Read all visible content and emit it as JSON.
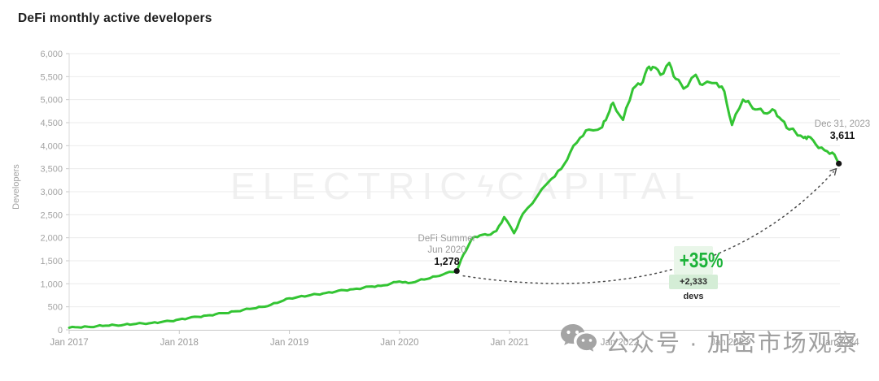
{
  "title": "DeFi monthly active developers",
  "brand_watermark": {
    "left": "ELECTRIC",
    "bolt": "ϟ",
    "right": "CAPITAL"
  },
  "wechat_watermark": {
    "icon": "wechat-icon",
    "text": "公众号 · 加密市场观察"
  },
  "annotations": {
    "defi_summer": {
      "title": "DeFi Summer",
      "date": "Jun 2020",
      "value": "1,278"
    },
    "endpoint": {
      "date": "Dec 31, 2023",
      "value": "3,611"
    },
    "growth": {
      "percent": "+35%",
      "devs": "+2,333 devs"
    }
  },
  "colors": {
    "line": "#33c433",
    "dot": "#151515",
    "connector": "#4a4a4a",
    "growth_text": "#1db33a",
    "growth_bg_top": "#e9f6e9",
    "growth_bg_bottom": "#d4edd6",
    "grid": "#ebebeb",
    "axis": "#c9c9c9",
    "tick_text": "#a2a2a2",
    "brand_watermark": "#f0f0f0",
    "wechat_watermark": "#a0a0a0",
    "title_text": "#1d1d1d"
  },
  "chart_data": {
    "type": "line",
    "title": "DeFi monthly active developers",
    "xlabel": "",
    "ylabel": "Developers",
    "xlim": [
      2017,
      2024
    ],
    "ylim": [
      0,
      6000
    ],
    "grid": "horizontal",
    "legend": "none",
    "x_ticks": [
      {
        "value": 2017,
        "label": "Jan 2017"
      },
      {
        "value": 2018,
        "label": "Jan 2018"
      },
      {
        "value": 2019,
        "label": "Jan 2019"
      },
      {
        "value": 2020,
        "label": "Jan 2020"
      },
      {
        "value": 2021,
        "label": "Jan 2021"
      },
      {
        "value": 2022,
        "label": "Jan 2022"
      },
      {
        "value": 2023,
        "label": "Jan 2023"
      },
      {
        "value": 2024,
        "label": "Jan 2024"
      }
    ],
    "y_ticks": [
      {
        "value": 0,
        "label": "0"
      },
      {
        "value": 500,
        "label": "500"
      },
      {
        "value": 1000,
        "label": "1,000"
      },
      {
        "value": 1500,
        "label": "1,500"
      },
      {
        "value": 2000,
        "label": "2,000"
      },
      {
        "value": 2500,
        "label": "2,500"
      },
      {
        "value": 3000,
        "label": "3,000"
      },
      {
        "value": 3500,
        "label": "3,500"
      },
      {
        "value": 4000,
        "label": "4,000"
      },
      {
        "value": 4500,
        "label": "4,500"
      },
      {
        "value": 5000,
        "label": "5,000"
      },
      {
        "value": 5500,
        "label": "5,500"
      },
      {
        "value": 6000,
        "label": "6,000"
      }
    ],
    "series": [
      {
        "name": "DeFi monthly active developers",
        "color": "#33c433",
        "points": [
          [
            2017.0,
            45
          ],
          [
            2017.08,
            55
          ],
          [
            2017.17,
            65
          ],
          [
            2017.25,
            80
          ],
          [
            2017.33,
            90
          ],
          [
            2017.42,
            100
          ],
          [
            2017.5,
            112
          ],
          [
            2017.58,
            122
          ],
          [
            2017.67,
            138
          ],
          [
            2017.75,
            150
          ],
          [
            2017.83,
            165
          ],
          [
            2017.92,
            190
          ],
          [
            2018.0,
            228
          ],
          [
            2018.08,
            252
          ],
          [
            2018.17,
            282
          ],
          [
            2018.25,
            310
          ],
          [
            2018.33,
            338
          ],
          [
            2018.42,
            362
          ],
          [
            2018.5,
            400
          ],
          [
            2018.58,
            432
          ],
          [
            2018.67,
            462
          ],
          [
            2018.75,
            500
          ],
          [
            2018.83,
            542
          ],
          [
            2018.92,
            612
          ],
          [
            2019.0,
            685
          ],
          [
            2019.08,
            715
          ],
          [
            2019.17,
            742
          ],
          [
            2019.25,
            772
          ],
          [
            2019.33,
            800
          ],
          [
            2019.42,
            832
          ],
          [
            2019.5,
            862
          ],
          [
            2019.58,
            882
          ],
          [
            2019.67,
            912
          ],
          [
            2019.75,
            942
          ],
          [
            2019.83,
            955
          ],
          [
            2019.92,
            1005
          ],
          [
            2020.0,
            1050
          ],
          [
            2020.08,
            1015
          ],
          [
            2020.17,
            1070
          ],
          [
            2020.25,
            1105
          ],
          [
            2020.33,
            1160
          ],
          [
            2020.42,
            1230
          ],
          [
            2020.52,
            1278
          ],
          [
            2020.58,
            1630
          ],
          [
            2020.66,
            1990
          ],
          [
            2020.73,
            2050
          ],
          [
            2020.8,
            2060
          ],
          [
            2020.88,
            2150
          ],
          [
            2020.95,
            2450
          ],
          [
            2021.04,
            2100
          ],
          [
            2021.12,
            2520
          ],
          [
            2021.25,
            2900
          ],
          [
            2021.38,
            3280
          ],
          [
            2021.47,
            3500
          ],
          [
            2021.55,
            3850
          ],
          [
            2021.64,
            4170
          ],
          [
            2021.72,
            4350
          ],
          [
            2021.84,
            4400
          ],
          [
            2021.89,
            4650
          ],
          [
            2021.94,
            4930
          ],
          [
            2022.03,
            4560
          ],
          [
            2022.12,
            5240
          ],
          [
            2022.19,
            5325
          ],
          [
            2022.25,
            5680
          ],
          [
            2022.3,
            5710
          ],
          [
            2022.37,
            5540
          ],
          [
            2022.45,
            5800
          ],
          [
            2022.51,
            5450
          ],
          [
            2022.58,
            5240
          ],
          [
            2022.69,
            5540
          ],
          [
            2022.75,
            5320
          ],
          [
            2022.88,
            5360
          ],
          [
            2022.95,
            5180
          ],
          [
            2023.02,
            4450
          ],
          [
            2023.12,
            5000
          ],
          [
            2023.19,
            4880
          ],
          [
            2023.25,
            4790
          ],
          [
            2023.34,
            4700
          ],
          [
            2023.41,
            4760
          ],
          [
            2023.47,
            4560
          ],
          [
            2023.54,
            4350
          ],
          [
            2023.59,
            4315
          ],
          [
            2023.67,
            4170
          ],
          [
            2023.71,
            4200
          ],
          [
            2023.78,
            4030
          ],
          [
            2023.86,
            3900
          ],
          [
            2023.93,
            3850
          ],
          [
            2023.99,
            3611
          ]
        ]
      }
    ],
    "markers": [
      {
        "x": 2020.52,
        "value": 1278,
        "label": "DeFi Summer, Jun 2020"
      },
      {
        "x": 2023.99,
        "value": 3611,
        "label": "Dec 31, 2023"
      }
    ],
    "change_annotation": {
      "percent": "+35%",
      "devs": "+2,333 devs",
      "from": 1278,
      "to": 3611
    }
  }
}
